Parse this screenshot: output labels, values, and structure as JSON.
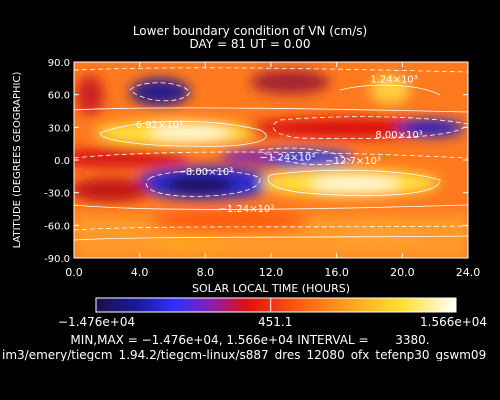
{
  "chart_data": {
    "type": "heatmap",
    "title": "Lower boundary condition of VN (cm/s)",
    "subtitle": "DAY =  81   UT =   0.00",
    "xlabel": "SOLAR LOCAL TIME (HOURS)",
    "ylabel": "LATITUDE (DEGREES GEOGRAPHIC)",
    "xlim": [
      0,
      24
    ],
    "ylim": [
      -90,
      90
    ],
    "xticks": [
      "0.0",
      "4.0",
      "8.0",
      "12.0",
      "16.0",
      "20.0",
      "24.0"
    ],
    "yticks": [
      "90.0",
      "60.0",
      "30.0",
      "0.0",
      "-30.0",
      "-60.0",
      "-90.0"
    ],
    "min": -14760,
    "max": 15660,
    "interval": 3380,
    "colorbar": {
      "min_label": "−1.476e+04",
      "mid_label": "451.1",
      "max_label": "1.566e+04"
    },
    "contour_labels": [
      {
        "text": "1.24×10³",
        "x": 19.5,
        "y": 75
      },
      {
        "text": "6.92×10³",
        "x": 5.2,
        "y": 33
      },
      {
        "text": "8.00×10³",
        "x": 19.8,
        "y": 24
      },
      {
        "text": "−1.24×10³",
        "x": 13.0,
        "y": 3
      },
      {
        "text": "−8.00×10³",
        "x": 8.0,
        "y": -10
      },
      {
        "text": "−12.7×10³",
        "x": 17.0,
        "y": 0
      },
      {
        "text": "−1.24×10³",
        "x": 10.5,
        "y": -44
      }
    ]
  },
  "footer": {
    "summary": "MIN,MAX = −1.476e+04, 1.566e+04 INTERVAL =       3380.",
    "path": "im3/emery/tiegcm_1.94.2/tiegcm-linux/s887_dres_12080_ofx_tefenp30_gswm09"
  }
}
